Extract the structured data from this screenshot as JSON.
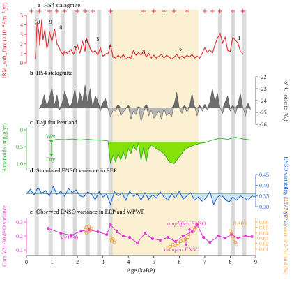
{
  "colors": {
    "red": "#e0282e",
    "gray_fill": "#6e6e6e",
    "gray_light_fill": "#b5b5b5",
    "green_line": "#2eaa2e",
    "green_fill": "#86e00a",
    "blue_line": "#1f5fd6",
    "blue_fill": "#cfe6f5",
    "magenta": "#e23ad0",
    "orange": "#f2a23c",
    "gray_band": "#cfcfcf",
    "yellow_band": "#fbf1d2"
  },
  "chart_data": [
    {
      "type": "line",
      "panel": "a",
      "title": "HS4 stalagmite",
      "ylabel": "IRM_soft_flux (×10⁻⁴Am⁻¹/yr)",
      "ylim": [
        0,
        5
      ],
      "yticks": [
        "0",
        "1",
        "2",
        "3",
        "4",
        "5"
      ],
      "events": [
        "10",
        "9",
        "8",
        "7",
        "6",
        "5",
        "4",
        "3",
        "2",
        "1"
      ],
      "dating_marks_age": [
        0.2,
        0.5,
        0.9,
        1.2,
        1.5,
        2.0,
        2.3,
        2.6,
        3.3,
        4.6,
        5.0,
        5.4,
        5.8,
        6.3,
        7.0,
        7.3,
        7.6,
        8.1,
        8.5
      ],
      "series": [
        {
          "x": [
            0.35,
            0.42,
            0.5,
            0.52,
            0.6,
            0.65,
            0.72,
            0.8,
            0.85,
            0.9,
            1.0,
            1.1,
            1.2,
            1.28,
            1.35,
            1.45,
            1.5,
            1.6,
            1.75,
            1.85,
            2.0,
            2.1,
            2.2,
            2.3,
            2.35,
            2.45,
            2.5,
            2.6,
            2.7,
            2.8,
            2.9,
            3.0,
            3.1,
            3.15,
            3.2,
            3.3,
            3.4,
            3.5,
            3.6,
            3.7,
            3.8,
            3.9,
            4.0,
            4.1,
            4.2,
            4.3,
            4.4,
            4.5,
            4.6,
            4.7,
            4.8,
            4.9,
            5.0,
            5.1,
            5.2,
            5.3,
            5.4,
            5.5,
            5.6,
            5.7,
            5.8,
            5.9,
            6.0,
            6.1,
            6.2,
            6.3,
            6.4,
            6.5,
            6.6,
            6.7,
            6.8,
            6.9,
            7.0,
            7.1,
            7.2,
            7.3,
            7.4,
            7.5,
            7.6,
            7.7,
            7.8,
            7.9,
            8.0,
            8.1,
            8.2,
            8.3,
            8.4,
            8.5
          ],
          "y": [
            0.4,
            4.3,
            3.0,
            1.8,
            4.6,
            2.4,
            3.5,
            1.5,
            2.0,
            3.3,
            2.2,
            3.6,
            2.0,
            1.6,
            1.2,
            0.8,
            1.2,
            1.0,
            1.4,
            0.9,
            1.9,
            1.0,
            2.3,
            1.2,
            2.6,
            2.0,
            1.5,
            1.1,
            1.3,
            0.8,
            1.6,
            0.7,
            0.9,
            1.0,
            0.9,
            1.9,
            0.6,
            0.5,
            0.8,
            0.5,
            0.9,
            0.4,
            0.6,
            0.5,
            1.3,
            0.8,
            1.1,
            0.8,
            1.3,
            0.6,
            1.0,
            0.5,
            0.8,
            0.5,
            0.7,
            0.9,
            0.5,
            0.8,
            0.6,
            0.4,
            0.6,
            0.9,
            0.5,
            0.7,
            0.5,
            0.8,
            0.6,
            0.9,
            0.5,
            0.7,
            0.5,
            1.0,
            1.6,
            1.1,
            1.4,
            1.0,
            1.9,
            2.6,
            3.1,
            2.1,
            2.7,
            1.3,
            1.2,
            2.7,
            2.4,
            2.1,
            1.2,
            1.0
          ]
        }
      ]
    },
    {
      "type": "area",
      "panel": "b",
      "title": "HS4 stalagmite",
      "ylabel": "δ¹³C_calcite (‰)",
      "ylim": [
        -26,
        -22
      ],
      "yticks": [
        "-22",
        "-23",
        "-24",
        "-25",
        "-26"
      ],
      "baseline": -24.6,
      "series": [
        {
          "x": [
            0.5,
            0.6,
            0.7,
            0.8,
            0.9,
            1.0,
            1.1,
            1.2,
            1.3,
            1.4,
            1.5,
            1.6,
            1.7,
            1.8,
            1.9,
            2.0,
            2.1,
            2.2,
            2.3,
            2.4,
            2.5,
            2.6,
            2.7,
            2.8,
            2.9,
            3.0,
            3.1,
            3.2,
            3.3,
            3.4,
            3.5,
            3.6,
            3.7,
            3.8,
            3.9,
            4.0,
            4.1,
            4.2,
            4.3,
            4.4,
            4.5,
            4.6,
            4.7,
            4.8,
            4.9,
            5.0,
            5.1,
            5.2,
            5.3,
            5.4,
            5.5,
            5.6,
            5.7,
            5.8,
            5.9,
            6.0,
            6.1,
            6.2,
            6.3,
            6.4,
            6.5,
            6.6,
            6.7,
            6.8,
            6.9,
            7.0,
            7.1,
            7.2,
            7.3,
            7.4,
            7.5,
            7.6,
            7.7,
            7.8,
            7.9,
            8.0,
            8.1,
            8.2,
            8.3,
            8.4,
            8.5,
            8.6,
            8.7,
            8.8
          ],
          "y": [
            -24.7,
            -24.3,
            -23.5,
            -24.5,
            -23.8,
            -22.9,
            -24.4,
            -23.5,
            -24.8,
            -24.2,
            -23.2,
            -23.9,
            -24.6,
            -24.1,
            -23.0,
            -24.4,
            -23.3,
            -24.1,
            -22.7,
            -24.2,
            -23.0,
            -24.6,
            -23.6,
            -24.0,
            -24.9,
            -24.2,
            -23.8,
            -24.7,
            -25.4,
            -24.8,
            -24.9,
            -24.3,
            -25.3,
            -25.0,
            -24.7,
            -24.4,
            -25.6,
            -24.9,
            -25.2,
            -24.5,
            -25.8,
            -25.0,
            -24.3,
            -25.3,
            -24.8,
            -25.5,
            -25.2,
            -24.9,
            -25.6,
            -24.7,
            -25.3,
            -25.0,
            -25.4,
            -24.3,
            -23.3,
            -24.6,
            -25.1,
            -24.4,
            -25.0,
            -24.5,
            -23.4,
            -24.5,
            -25.3,
            -24.4,
            -24.9,
            -24.3,
            -24.8,
            -24.1,
            -23.0,
            -24.1,
            -23.4,
            -24.6,
            -25.1,
            -24.1,
            -23.6,
            -24.9,
            -24.4,
            -25.2,
            -24.3,
            -23.4,
            -24.6,
            -25.3,
            -24.2,
            -24.8
          ]
        }
      ]
    },
    {
      "type": "area",
      "panel": "c",
      "title": "Dajiuhu Peatland",
      "ylabel": "Hopanoids (mg/g/yr)",
      "ylim": [
        0,
        1.2
      ],
      "yticks": [
        "0",
        "0.5",
        "1.0"
      ],
      "inverted": true,
      "baseline": 0.35,
      "annotations": [
        "Wet",
        "Dry"
      ],
      "series": [
        {
          "x": [
            0.9,
            1.2,
            1.5,
            1.8,
            2.1,
            2.4,
            2.7,
            3.0,
            3.2,
            3.3,
            3.4,
            3.5,
            3.6,
            3.7,
            3.8,
            3.9,
            4.0,
            4.1,
            4.2,
            4.3,
            4.4,
            4.5,
            4.6,
            4.7,
            4.8,
            4.9,
            5.0,
            5.2,
            5.4,
            5.6,
            5.8,
            6.0,
            6.2,
            6.4,
            6.6,
            6.8,
            7.0,
            7.3,
            7.6,
            7.9,
            8.2,
            8.5,
            8.8
          ],
          "y": [
            0.32,
            0.28,
            0.29,
            0.27,
            0.3,
            0.28,
            0.3,
            0.31,
            0.33,
            1.0,
            0.75,
            0.95,
            0.7,
            0.9,
            0.65,
            0.85,
            0.55,
            0.7,
            0.45,
            0.6,
            0.4,
            0.9,
            0.5,
            0.95,
            0.55,
            0.45,
            0.5,
            0.6,
            0.7,
            0.95,
            1.0,
            0.8,
            0.6,
            0.5,
            0.45,
            0.4,
            0.38,
            0.3,
            0.25,
            0.28,
            0.22,
            0.27,
            0.3
          ]
        }
      ]
    },
    {
      "type": "area",
      "panel": "d",
      "title": "Simulated ENSO variance in EEP",
      "ylabel": "ENSO variability (1.5-7 yr/°C)",
      "ylim": [
        0.3,
        0.45
      ],
      "yticks": [
        "0.45",
        "0.40",
        "0.35",
        "0.30"
      ],
      "baseline": 0.36,
      "series": [
        {
          "x": [
            0.0,
            0.15,
            0.3,
            0.45,
            0.6,
            0.75,
            0.9,
            1.05,
            1.2,
            1.35,
            1.5,
            1.65,
            1.8,
            1.95,
            2.1,
            2.25,
            2.4,
            2.55,
            2.7,
            2.85,
            3.0,
            3.15,
            3.3,
            3.45,
            3.6,
            3.75,
            3.9,
            4.05,
            4.2,
            4.35,
            4.5,
            4.65,
            4.8,
            4.95,
            5.1,
            5.25,
            5.4,
            5.55,
            5.7,
            5.85,
            6.0,
            6.15,
            6.3,
            6.45,
            6.6,
            6.75,
            6.9,
            7.05,
            7.2,
            7.35,
            7.5,
            7.65,
            7.8,
            7.95,
            8.1,
            8.25,
            8.4,
            8.55,
            8.7,
            8.85,
            9.0
          ],
          "y": [
            0.36,
            0.38,
            0.355,
            0.39,
            0.362,
            0.375,
            0.35,
            0.395,
            0.358,
            0.372,
            0.348,
            0.385,
            0.365,
            0.378,
            0.35,
            0.345,
            0.368,
            0.36,
            0.332,
            0.37,
            0.345,
            0.358,
            0.31,
            0.37,
            0.35,
            0.365,
            0.33,
            0.372,
            0.348,
            0.36,
            0.33,
            0.365,
            0.335,
            0.355,
            0.34,
            0.37,
            0.345,
            0.33,
            0.36,
            0.34,
            0.372,
            0.335,
            0.35,
            0.365,
            0.33,
            0.345,
            0.325,
            0.34,
            0.37,
            0.31,
            0.345,
            0.355,
            0.335,
            0.32,
            0.345,
            0.33,
            0.35,
            0.34,
            0.33,
            0.35,
            0.345
          ]
        }
      ]
    },
    {
      "type": "scatter",
      "panel": "e",
      "title": "Observed ENSO variance in EEP and WPWP",
      "ylabel_left": "Core V21-30 δ¹⁸O variance",
      "ylabel_right": "BA03 δ¹⁸O variance of 2-7yr band (‰)",
      "xlabel": "Age (kaBP)",
      "ylim_left": [
        0.1,
        0.3
      ],
      "yticks_left": [
        "0.3",
        "0.2",
        "0.1"
      ],
      "ylim_right": [
        0.0,
        0.06
      ],
      "yticks_right": [
        "0.06",
        "0.05",
        "0.04",
        "0.03",
        "0.02",
        "0.01"
      ],
      "xlim": [
        0,
        9
      ],
      "xticks": [
        "0",
        "1",
        "2",
        "3",
        "4",
        "5",
        "6",
        "7",
        "8",
        "9"
      ],
      "annotations": [
        "amplified ENSO",
        "damped ENSO",
        "V21-30",
        "BA03"
      ],
      "series": [
        {
          "name": "V21-30",
          "x": [
            0.85,
            1.35,
            1.75,
            2.15,
            2.45,
            2.8,
            3.15,
            3.3,
            3.55,
            3.8,
            4.05,
            4.35,
            4.65,
            4.95,
            5.25,
            5.55,
            5.85,
            6.15,
            6.5,
            6.7,
            6.95,
            7.2,
            7.55,
            7.8,
            8.05,
            8.3,
            8.6,
            8.85
          ],
          "y": [
            0.255,
            0.22,
            0.205,
            0.235,
            0.245,
            0.23,
            0.21,
            0.28,
            0.23,
            0.2,
            0.19,
            0.15,
            0.22,
            0.18,
            0.17,
            0.19,
            0.16,
            0.2,
            0.23,
            0.28,
            0.19,
            0.155,
            0.2,
            0.185,
            0.21,
            0.185,
            0.2,
            0.195
          ]
        },
        {
          "name": "BA03",
          "x": [
            2.3,
            2.35,
            2.4,
            2.45,
            2.5,
            2.55,
            2.35,
            2.45,
            2.5,
            3.3,
            3.35,
            3.4,
            3.45,
            5.55,
            5.65,
            5.75,
            5.85,
            5.95,
            6.05,
            6.15,
            6.25,
            6.35,
            6.45,
            6.55,
            6.6,
            6.65,
            6.7,
            8.0,
            8.05,
            8.1,
            8.15,
            8.2,
            8.25
          ],
          "y": [
            0.045,
            0.05,
            0.047,
            0.052,
            0.044,
            0.048,
            0.04,
            0.042,
            0.046,
            0.03,
            0.025,
            0.028,
            0.022,
            0.012,
            0.014,
            0.018,
            0.016,
            0.02,
            0.024,
            0.026,
            0.028,
            0.032,
            0.038,
            0.042,
            0.047,
            0.05,
            0.055,
            0.043,
            0.038,
            0.033,
            0.028,
            0.022,
            0.018
          ]
        }
      ]
    }
  ]
}
